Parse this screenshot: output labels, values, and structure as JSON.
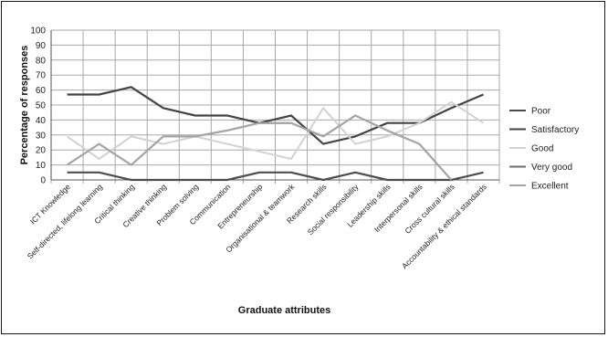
{
  "chart_data": {
    "type": "line",
    "categories": [
      "ICT Knowledge",
      "Self-directed, lifelong learning",
      "Critical thinking",
      "Creative thinking",
      "Problem solving",
      "Communication",
      "Entrepreneurship",
      "Organisational & teamwork",
      "Research skills",
      "Social responsibility",
      "Leadership skills",
      "Interpersonal skills",
      "Cross cultural skills",
      "Accountability & ethical standards"
    ],
    "series": [
      {
        "name": "Poor",
        "color": "#4d4d4d",
        "values": [
          5,
          5,
          0,
          0,
          0,
          0,
          5,
          5,
          0,
          5,
          0,
          0,
          0,
          5
        ]
      },
      {
        "name": "Satisfactory",
        "color": "#444444",
        "values": [
          57,
          57,
          62,
          48,
          43,
          43,
          38,
          43,
          24,
          29,
          38,
          38,
          48,
          57
        ]
      },
      {
        "name": "Good",
        "color": "#d2d2d2",
        "values": [
          29,
          14,
          29,
          24,
          29,
          24,
          19,
          14,
          48,
          24,
          29,
          38,
          52,
          38
        ]
      },
      {
        "name": "Very good",
        "color": "#6e6e6e",
        "values": [
          10,
          24,
          10,
          29,
          29,
          33,
          38,
          38,
          29,
          43,
          33,
          24,
          0,
          null
        ]
      },
      {
        "name": "Excellent",
        "color": "#a6a6a6",
        "values": [
          10,
          24,
          10,
          29,
          29,
          33,
          38,
          38,
          29,
          43,
          33,
          24,
          0,
          null
        ]
      }
    ],
    "yticks": [
      "0",
      "10",
      "20",
      "30",
      "40",
      "50",
      "60",
      "70",
      "80",
      "90",
      "100"
    ],
    "xlabel": "Graduate attributes",
    "ylabel": "Percentage of responses",
    "ylim": [
      0,
      100
    ],
    "grid": true,
    "legend_position": "right"
  }
}
